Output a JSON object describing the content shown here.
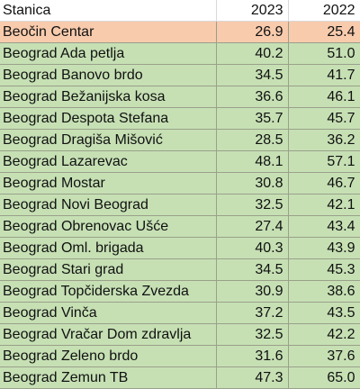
{
  "table": {
    "headers": [
      "Stanica",
      "2023",
      "2022"
    ],
    "rows": [
      {
        "station": "Beočin Centar",
        "y2023": "26.9",
        "y2022": "25.4",
        "highlight": true
      },
      {
        "station": "Beograd Ada petlja",
        "y2023": "40.2",
        "y2022": "51.0"
      },
      {
        "station": "Beograd Banovo brdo",
        "y2023": "34.5",
        "y2022": "41.7"
      },
      {
        "station": "Beograd Bežanijska kosa",
        "y2023": "36.6",
        "y2022": "46.1"
      },
      {
        "station": "Beograd Despota Stefana",
        "y2023": "35.7",
        "y2022": "45.7"
      },
      {
        "station": "Beograd Dragiša Mišović",
        "y2023": "28.5",
        "y2022": "36.2"
      },
      {
        "station": "Beograd Lazarevac",
        "y2023": "48.1",
        "y2022": "57.1"
      },
      {
        "station": "Beograd Mostar",
        "y2023": "30.8",
        "y2022": "46.7"
      },
      {
        "station": "Beograd Novi Beograd",
        "y2023": "32.5",
        "y2022": "42.1"
      },
      {
        "station": "Beograd Obrenovac Ušće",
        "y2023": "27.4",
        "y2022": "43.4"
      },
      {
        "station": "Beograd Oml. brigada",
        "y2023": "40.3",
        "y2022": "43.9"
      },
      {
        "station": "Beograd Stari grad",
        "y2023": "34.5",
        "y2022": "45.3"
      },
      {
        "station": "Beograd Topčiderska Zvezda",
        "y2023": "30.9",
        "y2022": "38.6"
      },
      {
        "station": "Beograd Vinča",
        "y2023": "37.2",
        "y2022": "43.5"
      },
      {
        "station": "Beograd Vračar Dom zdravlja",
        "y2023": "32.5",
        "y2022": "42.2"
      },
      {
        "station": "Beograd Zeleno brdo",
        "y2023": "31.6",
        "y2022": "37.6"
      },
      {
        "station": "Beograd Zemun TB",
        "y2023": "47.3",
        "y2022": "65.0"
      }
    ]
  },
  "colors": {
    "highlight_row": "#f8cbad",
    "normal_row": "#c6e0b4"
  }
}
